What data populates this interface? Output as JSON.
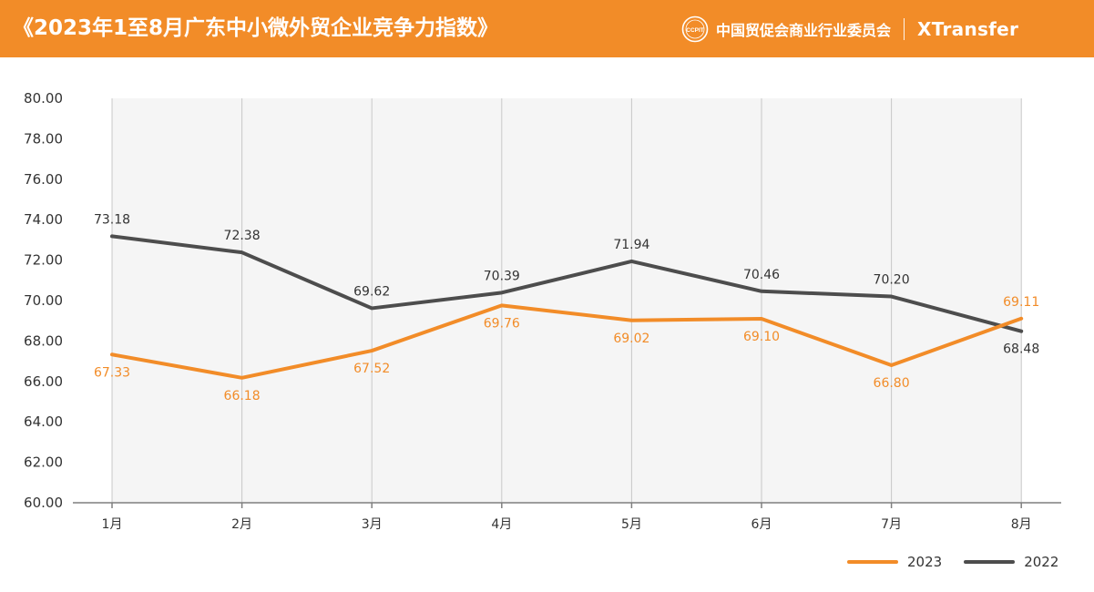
{
  "header": {
    "title": "《2023年1至8月广东中小微外贸企业竞争力指数》",
    "org_logo_text": "CCPIT",
    "org_name": "中国贸促会商业行业委员会",
    "brand": "XTransfer"
  },
  "colors": {
    "header_bg": "#f28c28",
    "series_2023": "#f28c28",
    "series_2022": "#4d4d4d",
    "plot_bg": "#f5f5f5"
  },
  "chart_data": {
    "type": "line",
    "title": "",
    "xlabel": "",
    "ylabel": "",
    "categories": [
      "1月",
      "2月",
      "3月",
      "4月",
      "5月",
      "6月",
      "7月",
      "8月"
    ],
    "ylim": [
      60,
      80
    ],
    "yticks": [
      "60.00",
      "62.00",
      "64.00",
      "66.00",
      "68.00",
      "70.00",
      "72.00",
      "74.00",
      "76.00",
      "78.00",
      "80.00"
    ],
    "grid": "vertical",
    "legend_position": "bottom-right",
    "series": [
      {
        "name": "2023",
        "values": [
          67.33,
          66.18,
          67.52,
          69.76,
          69.02,
          69.1,
          66.8,
          69.11
        ],
        "labels": [
          "67.33",
          "66.18",
          "67.52",
          "69.76",
          "69.02",
          "69.10",
          "66.80",
          "69.11"
        ]
      },
      {
        "name": "2022",
        "values": [
          73.18,
          72.38,
          69.62,
          70.39,
          71.94,
          70.46,
          70.2,
          68.48
        ],
        "labels": [
          "73.18",
          "72.38",
          "69.62",
          "70.39",
          "71.94",
          "70.46",
          "70.20",
          "68.48"
        ]
      }
    ]
  }
}
